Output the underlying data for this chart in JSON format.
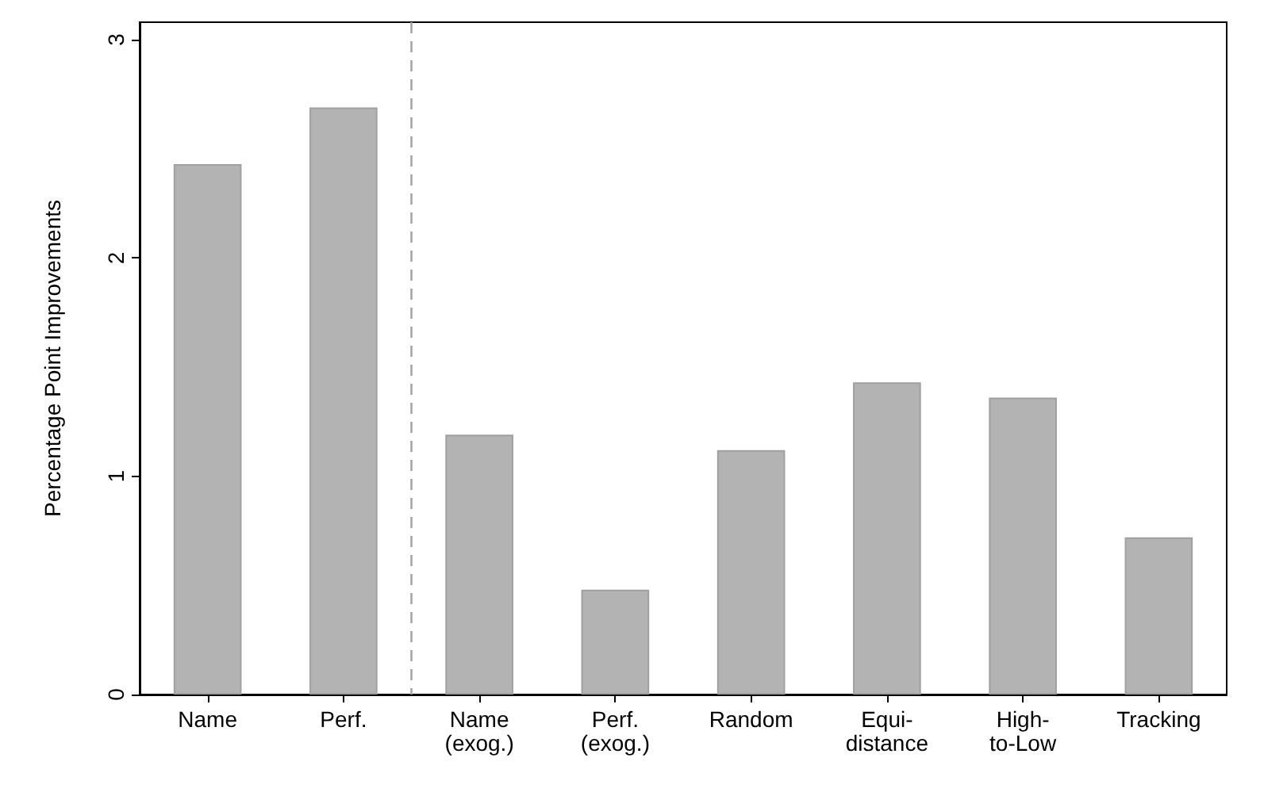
{
  "chart_data": {
    "type": "bar",
    "ylabel": "Percentage Point Improvements",
    "categories": [
      "Name",
      "Perf.",
      "Name\n(exog.)",
      "Perf.\n(exog.)",
      "Random",
      "Equi-\ndistance",
      "High-\nto-Low",
      "Tracking"
    ],
    "values": [
      2.43,
      2.69,
      1.19,
      0.48,
      1.12,
      1.43,
      1.36,
      0.72
    ],
    "color": "#b3b3b3",
    "ylim": [
      0,
      3.08
    ],
    "yticks": [
      0,
      1,
      2,
      3
    ],
    "grid": false
  }
}
